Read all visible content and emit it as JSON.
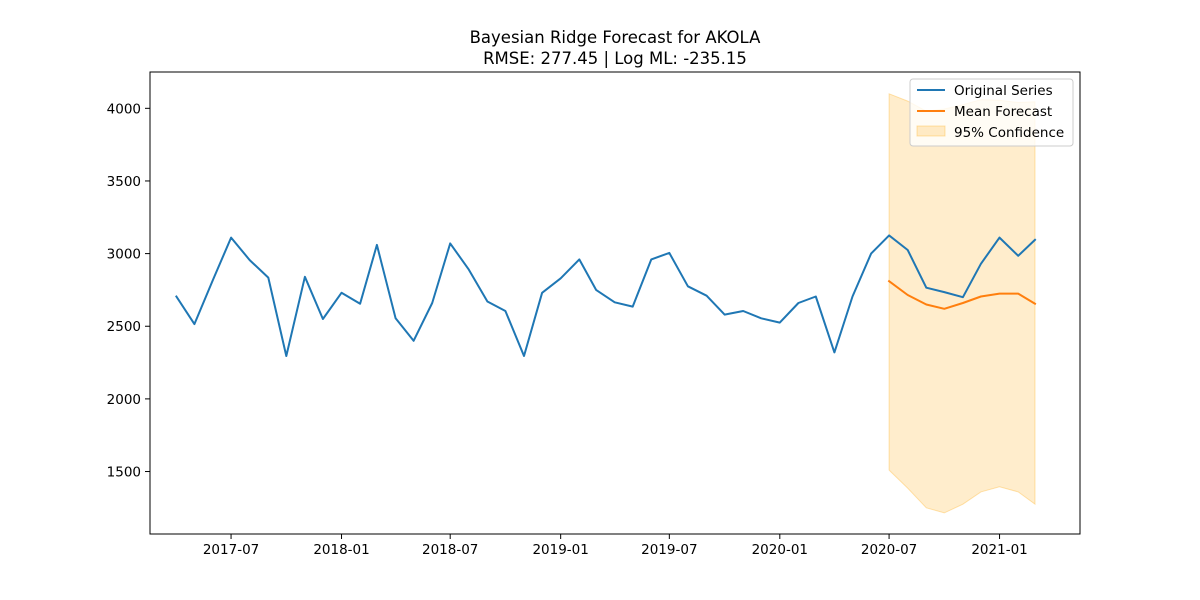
{
  "chart_data": {
    "type": "line",
    "title": "Bayesian Ridge Forecast for AKOLA",
    "subtitle": "RMSE: 277.45 | Log ML: -235.15",
    "xlabel": "",
    "ylabel": "",
    "x_ticks": [
      "2017-07",
      "2018-01",
      "2018-07",
      "2019-01",
      "2019-07",
      "2020-01",
      "2020-07",
      "2021-01"
    ],
    "y_ticks": [
      1500,
      2000,
      2500,
      3000,
      3500,
      4000
    ],
    "xlim": [
      "2017-02-16",
      "2021-05-15"
    ],
    "ylim": [
      1070,
      4250
    ],
    "grid": false,
    "legend_position": "top-right",
    "series": [
      {
        "name": "Original Series",
        "color": "#1f77b4",
        "x": [
          "2017-04",
          "2017-05",
          "2017-06",
          "2017-07",
          "2017-08",
          "2017-09",
          "2017-10",
          "2017-11",
          "2017-12",
          "2018-01",
          "2018-02",
          "2018-03",
          "2018-04",
          "2018-05",
          "2018-06",
          "2018-07",
          "2018-08",
          "2018-09",
          "2018-10",
          "2018-11",
          "2018-12",
          "2019-01",
          "2019-02",
          "2019-03",
          "2019-04",
          "2019-05",
          "2019-06",
          "2019-07",
          "2019-08",
          "2019-09",
          "2019-10",
          "2019-11",
          "2019-12",
          "2020-01",
          "2020-02",
          "2020-03",
          "2020-04",
          "2020-05",
          "2020-06",
          "2020-07",
          "2020-08",
          "2020-09",
          "2020-10",
          "2020-11",
          "2020-12",
          "2021-01",
          "2021-02",
          "2021-03"
        ],
        "values": [
          2705,
          2515,
          2820,
          3110,
          2955,
          2835,
          2295,
          2840,
          2550,
          2730,
          2655,
          3060,
          2555,
          2400,
          2660,
          3070,
          2890,
          2670,
          2605,
          2295,
          2730,
          2830,
          2960,
          2750,
          2665,
          2635,
          2960,
          3005,
          2775,
          2710,
          2580,
          2605,
          2555,
          2525,
          2660,
          2705,
          2320,
          2705,
          3000,
          3125,
          3025,
          2765,
          2735,
          2700,
          2930,
          3110,
          2985,
          3095
        ]
      },
      {
        "name": "Mean Forecast",
        "color": "#ff7f0e",
        "x": [
          "2020-07",
          "2020-08",
          "2020-09",
          "2020-10",
          "2020-11",
          "2020-12",
          "2021-01",
          "2021-02",
          "2021-03"
        ],
        "values": [
          2810,
          2715,
          2650,
          2620,
          2660,
          2705,
          2725,
          2725,
          2655
        ]
      }
    ],
    "confidence_band": {
      "name": "95% Confidence",
      "color": "#ffa500",
      "x": [
        "2020-07",
        "2020-08",
        "2020-09",
        "2020-10",
        "2020-11",
        "2020-12",
        "2021-01",
        "2021-02",
        "2021-03"
      ],
      "lower": [
        1510,
        1385,
        1250,
        1215,
        1275,
        1360,
        1395,
        1360,
        1275
      ],
      "upper": [
        4100,
        4050,
        3980,
        3995,
        4025,
        4060,
        4055,
        4040,
        4045
      ]
    }
  }
}
